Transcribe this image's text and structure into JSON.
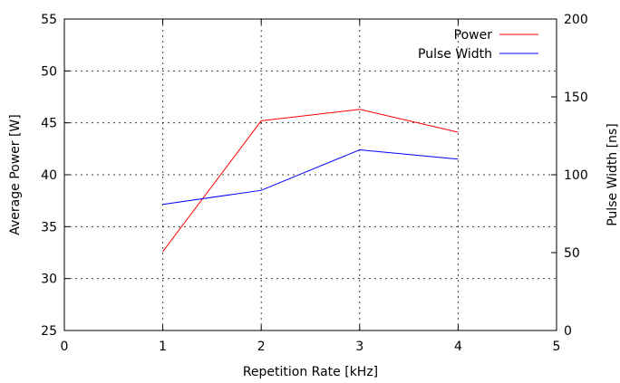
{
  "chart_data": {
    "type": "line",
    "title": "",
    "xlabel": "Repetition Rate [kHz]",
    "ylabel": "Average Power [W]",
    "y2label": "Pulse Width [ns]",
    "xlim": [
      0,
      5
    ],
    "ylim": [
      25,
      55
    ],
    "y2lim": [
      0,
      200
    ],
    "x_ticks": [
      "0",
      "1",
      "2",
      "3",
      "4",
      "5"
    ],
    "y_ticks": [
      "25",
      "30",
      "35",
      "40",
      "45",
      "50",
      "55"
    ],
    "y2_ticks": [
      "0",
      "50",
      "100",
      "150",
      "200"
    ],
    "grid": true,
    "legend_position": "top-right",
    "series": [
      {
        "name": "Power",
        "axis": "left",
        "color": "#ff0000",
        "x": [
          1,
          2,
          3,
          4
        ],
        "values": [
          32.6,
          45.2,
          46.3,
          44.1
        ]
      },
      {
        "name": "Pulse Width",
        "axis": "right",
        "color": "#0000ff",
        "x": [
          1,
          2,
          3,
          4
        ],
        "values": [
          81,
          90,
          116,
          110
        ]
      }
    ]
  }
}
